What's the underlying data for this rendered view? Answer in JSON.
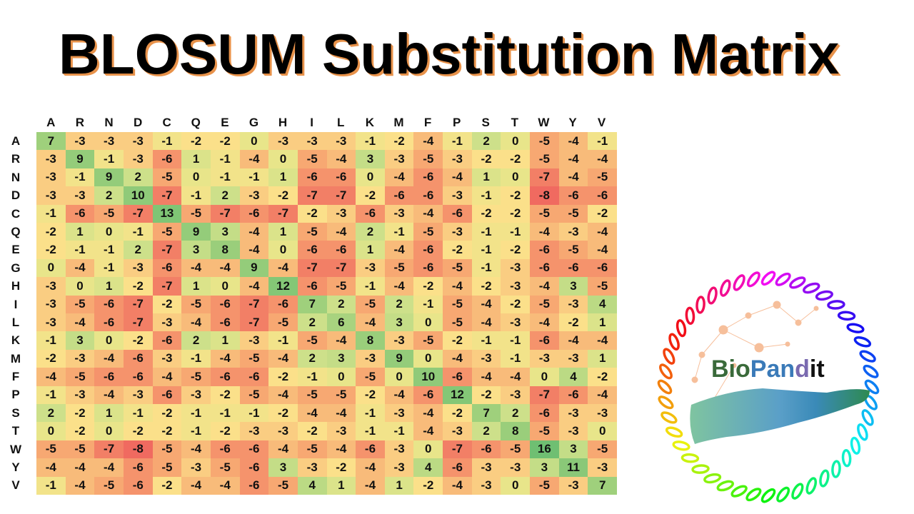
{
  "title": "BLOSUM Substitution Matrix",
  "logo": {
    "text_prefix": "Bio",
    "text_mid": "Pan",
    "text_d": "d",
    "text_suffix": "it",
    "full_text": "BioPandit"
  },
  "colors": {
    "min": "#f06a60",
    "neg_mid": "#f7a872",
    "neutral": "#fbe08a",
    "zero": "#e8e58a",
    "pos_low": "#cde08a",
    "pos_high": "#9fd07c",
    "max": "#6fbf72",
    "title_shadow": "#e8924a"
  },
  "chart_data": {
    "type": "heatmap",
    "title": "BLOSUM Substitution Matrix",
    "xlabel": "",
    "ylabel": "",
    "x_labels": [
      "A",
      "R",
      "N",
      "D",
      "C",
      "Q",
      "E",
      "G",
      "H",
      "I",
      "L",
      "K",
      "M",
      "F",
      "P",
      "S",
      "T",
      "W",
      "Y",
      "V"
    ],
    "y_labels": [
      "A",
      "R",
      "N",
      "D",
      "C",
      "Q",
      "E",
      "G",
      "H",
      "I",
      "L",
      "K",
      "M",
      "F",
      "P",
      "S",
      "T",
      "W",
      "Y",
      "V"
    ],
    "value_range": [
      -8,
      16
    ],
    "colormap": "red-yellow-green",
    "values": [
      [
        7,
        -3,
        -3,
        -3,
        -1,
        -2,
        -2,
        0,
        -3,
        -3,
        -3,
        -1,
        -2,
        -4,
        -1,
        2,
        0,
        -5,
        -4,
        -1
      ],
      [
        -3,
        9,
        -1,
        -3,
        -6,
        1,
        -1,
        -4,
        0,
        -5,
        -4,
        3,
        -3,
        -5,
        -3,
        -2,
        -2,
        -5,
        -4,
        -4
      ],
      [
        -3,
        -1,
        9,
        2,
        -5,
        0,
        -1,
        -1,
        1,
        -6,
        -6,
        0,
        -4,
        -6,
        -4,
        1,
        0,
        -7,
        -4,
        -5
      ],
      [
        -3,
        -3,
        2,
        10,
        -7,
        -1,
        2,
        -3,
        -2,
        -7,
        -7,
        -2,
        -6,
        -6,
        -3,
        -1,
        -2,
        -8,
        -6,
        -6
      ],
      [
        -1,
        -6,
        -5,
        -7,
        13,
        -5,
        -7,
        -6,
        -7,
        -2,
        -3,
        -6,
        -3,
        -4,
        -6,
        -2,
        -2,
        -5,
        -5,
        -2
      ],
      [
        -2,
        1,
        0,
        -1,
        -5,
        9,
        3,
        -4,
        1,
        -5,
        -4,
        2,
        -1,
        -5,
        -3,
        -1,
        -1,
        -4,
        -3,
        -4
      ],
      [
        -2,
        -1,
        -1,
        2,
        -7,
        3,
        8,
        -4,
        0,
        -6,
        -6,
        1,
        -4,
        -6,
        -2,
        -1,
        -2,
        -6,
        -5,
        -4
      ],
      [
        0,
        -4,
        -1,
        -3,
        -6,
        -4,
        -4,
        9,
        -4,
        -7,
        -7,
        -3,
        -5,
        -6,
        -5,
        -1,
        -3,
        -6,
        -6,
        -6
      ],
      [
        -3,
        0,
        1,
        -2,
        -7,
        1,
        0,
        -4,
        12,
        -6,
        -5,
        -1,
        -4,
        -2,
        -4,
        -2,
        -3,
        -4,
        3,
        -5
      ],
      [
        -3,
        -5,
        -6,
        -7,
        -2,
        -5,
        -6,
        -7,
        -6,
        7,
        2,
        -5,
        2,
        -1,
        -5,
        -4,
        -2,
        -5,
        -3,
        4
      ],
      [
        -3,
        -4,
        -6,
        -7,
        -3,
        -4,
        -6,
        -7,
        -5,
        2,
        6,
        -4,
        3,
        0,
        -5,
        -4,
        -3,
        -4,
        -2,
        1
      ],
      [
        -1,
        3,
        0,
        -2,
        -6,
        2,
        1,
        -3,
        -1,
        -5,
        -4,
        8,
        -3,
        -5,
        -2,
        -1,
        -1,
        -6,
        -4,
        -4
      ],
      [
        -2,
        -3,
        -4,
        -6,
        -3,
        -1,
        -4,
        -5,
        -4,
        2,
        3,
        -3,
        9,
        0,
        -4,
        -3,
        -1,
        -3,
        -3,
        1
      ],
      [
        -4,
        -5,
        -6,
        -6,
        -4,
        -5,
        -6,
        -6,
        -2,
        -1,
        0,
        -5,
        0,
        10,
        -6,
        -4,
        -4,
        0,
        4,
        -2
      ],
      [
        -1,
        -3,
        -4,
        -3,
        -6,
        -3,
        -2,
        -5,
        -4,
        -5,
        -5,
        -2,
        -4,
        -6,
        12,
        -2,
        -3,
        -7,
        -6,
        -4
      ],
      [
        2,
        -2,
        1,
        -1,
        -2,
        -1,
        -1,
        -1,
        -2,
        -4,
        -4,
        -1,
        -3,
        -4,
        -2,
        7,
        2,
        -6,
        -3,
        -3
      ],
      [
        0,
        -2,
        0,
        -2,
        -2,
        -1,
        -2,
        -3,
        -3,
        -2,
        -3,
        -1,
        -1,
        -4,
        -3,
        2,
        8,
        -5,
        -3,
        0
      ],
      [
        -5,
        -5,
        -7,
        -8,
        -5,
        -4,
        -6,
        -6,
        -4,
        -5,
        -4,
        -6,
        -3,
        0,
        -7,
        -6,
        -5,
        16,
        3,
        -5
      ],
      [
        -4,
        -4,
        -4,
        -6,
        -5,
        -3,
        -5,
        -6,
        3,
        -3,
        -2,
        -4,
        -3,
        4,
        -6,
        -3,
        -3,
        3,
        11,
        -3
      ],
      [
        -1,
        -4,
        -5,
        -6,
        -2,
        -4,
        -4,
        -6,
        -5,
        4,
        1,
        -4,
        1,
        -2,
        -4,
        -3,
        0,
        -5,
        -3,
        7
      ]
    ]
  }
}
